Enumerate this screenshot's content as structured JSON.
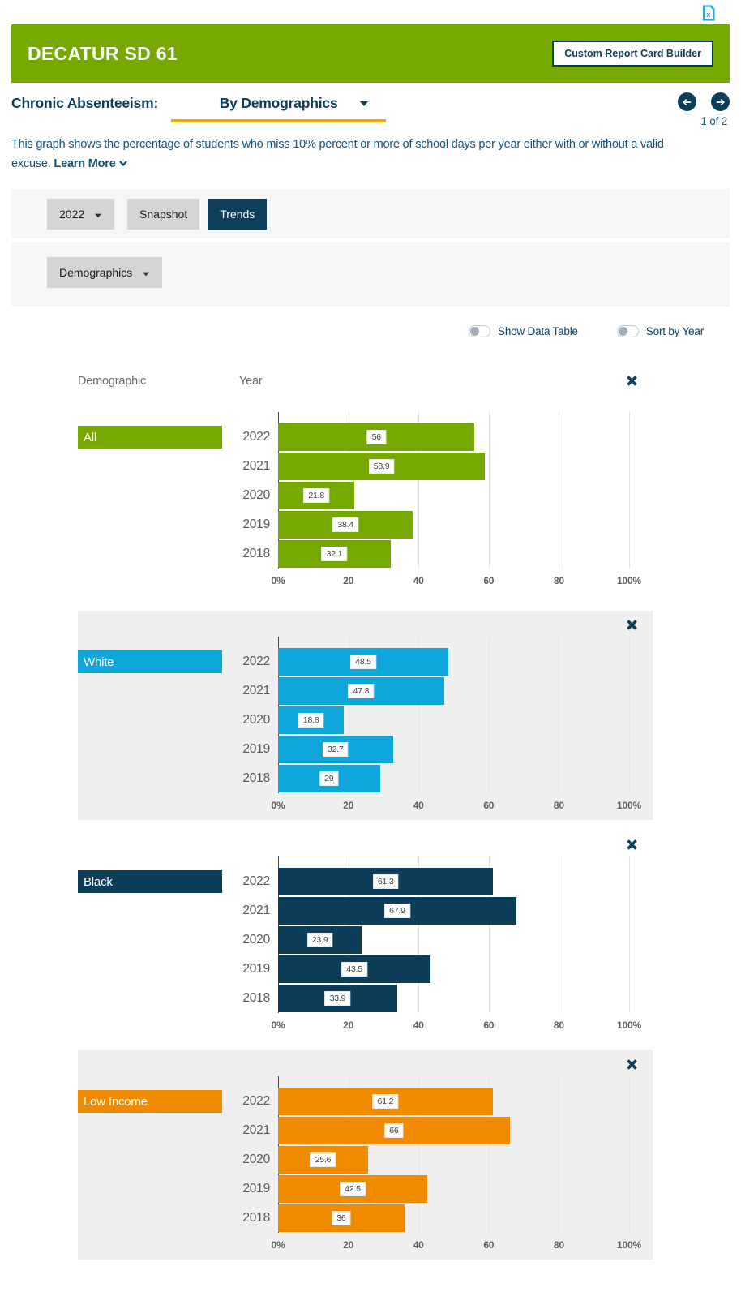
{
  "header": {
    "district_name": "DECATUR SD 61",
    "builder_button": "Custom Report Card Builder"
  },
  "topic": {
    "label": "Chronic Absenteeism:",
    "selected_view": "By Demographics",
    "pager": "1 of 2",
    "description": "This graph shows the percentage of students who miss 10% percent or more of school days per year either with or without a valid excuse.",
    "learn_more_label": "Learn More"
  },
  "controls": {
    "year_dropdown": "2022",
    "snapshot_button": "Snapshot",
    "trends_button": "Trends",
    "demographics_dropdown": "Demographics"
  },
  "toggles": [
    {
      "label": "Show Data Table",
      "state": "off"
    },
    {
      "label": "Sort by Year",
      "state": "off"
    }
  ],
  "chart_header": {
    "demographic": "Demographic",
    "year": "Year"
  },
  "icons": {
    "top_right": "excel-export-icon",
    "pager_left": "prev-arrow-icon",
    "pager_right": "next-arrow-icon",
    "panel_close": "close-x-icon",
    "dropdown_caret": "caret-down-icon",
    "learn_more_chevron": "chevron-down-icon",
    "toggle_switch": "toggle-off"
  },
  "colors": {
    "brand_green": "#76a900",
    "navy": "#0d3e59",
    "blue": "#0fa6db",
    "orange": "#f08b00",
    "gold_underline": "#f0ab00",
    "panel_gray": "#efefef",
    "band_gray": "#f4f6f7",
    "button_gray": "#d5d5d5",
    "text_blue": "#11527d",
    "export_cyan": "#29abe2"
  },
  "chart_data": {
    "type": "bar",
    "orientation": "horizontal",
    "value_unit": "percent",
    "title": "Chronic Absenteeism By Demographics (Trends)",
    "x_ticks": [
      "0%",
      "20",
      "40",
      "60",
      "80",
      "100%"
    ],
    "xlim": [
      0,
      100
    ],
    "grid": true,
    "years": [
      "2022",
      "2021",
      "2020",
      "2019",
      "2018"
    ],
    "series": [
      {
        "name": "All",
        "color": "#76a900",
        "panel": "white",
        "values": [
          56,
          58.9,
          21.8,
          38.4,
          32.1
        ]
      },
      {
        "name": "White",
        "color": "#0fa6db",
        "panel": "gray",
        "values": [
          48.5,
          47.3,
          18.8,
          32.7,
          29
        ]
      },
      {
        "name": "Black",
        "color": "#0d3e59",
        "panel": "white",
        "values": [
          61.3,
          67.9,
          23.9,
          43.5,
          33.9
        ]
      },
      {
        "name": "Low Income",
        "color": "#f08b00",
        "panel": "gray",
        "values": [
          61.2,
          66,
          25.6,
          42.5,
          36
        ]
      }
    ]
  }
}
